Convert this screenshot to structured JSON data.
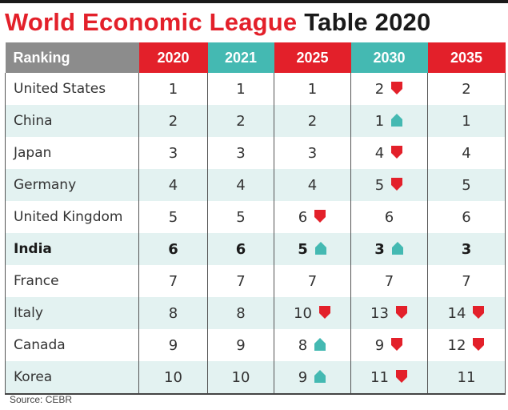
{
  "chart_data": {
    "type": "table",
    "title": "World Economic League Table 2020",
    "title_parts": {
      "red": "World Economic League",
      "black": "Table 2020"
    },
    "header": {
      "label": "Ranking",
      "years": [
        "2020",
        "2021",
        "2025",
        "2030",
        "2035"
      ],
      "colors": [
        "#e3202a",
        "#44b9b2",
        "#e3202a",
        "#44b9b2",
        "#e3202a"
      ]
    },
    "rows": [
      {
        "country": "United States",
        "ranks": [
          "1",
          "1",
          "1",
          "2",
          "2"
        ],
        "trend": [
          "",
          "",
          "",
          "down",
          ""
        ],
        "bold": false
      },
      {
        "country": "China",
        "ranks": [
          "2",
          "2",
          "2",
          "1",
          "1"
        ],
        "trend": [
          "",
          "",
          "",
          "up",
          ""
        ],
        "bold": false
      },
      {
        "country": "Japan",
        "ranks": [
          "3",
          "3",
          "3",
          "4",
          "4"
        ],
        "trend": [
          "",
          "",
          "",
          "down",
          ""
        ],
        "bold": false
      },
      {
        "country": "Germany",
        "ranks": [
          "4",
          "4",
          "4",
          "5",
          "5"
        ],
        "trend": [
          "",
          "",
          "",
          "down",
          ""
        ],
        "bold": false
      },
      {
        "country": "United Kingdom",
        "ranks": [
          "5",
          "5",
          "6",
          "6",
          "6"
        ],
        "trend": [
          "",
          "",
          "down",
          "",
          ""
        ],
        "bold": false
      },
      {
        "country": "India",
        "ranks": [
          "6",
          "6",
          "5",
          "3",
          "3"
        ],
        "trend": [
          "",
          "",
          "up",
          "up",
          ""
        ],
        "bold": true
      },
      {
        "country": "France",
        "ranks": [
          "7",
          "7",
          "7",
          "7",
          "7"
        ],
        "trend": [
          "",
          "",
          "",
          "",
          ""
        ],
        "bold": false
      },
      {
        "country": "Italy",
        "ranks": [
          "8",
          "8",
          "10",
          "13",
          "14"
        ],
        "trend": [
          "",
          "",
          "down",
          "down",
          "down"
        ],
        "bold": false
      },
      {
        "country": "Canada",
        "ranks": [
          "9",
          "9",
          "8",
          "9",
          "12"
        ],
        "trend": [
          "",
          "",
          "up",
          "down",
          "down"
        ],
        "bold": false
      },
      {
        "country": "Korea",
        "ranks": [
          "10",
          "10",
          "9",
          "11",
          "11"
        ],
        "trend": [
          "",
          "",
          "up",
          "down",
          ""
        ],
        "bold": false
      }
    ],
    "legend": {
      "up": "arrow-up (teal) = rank improves",
      "down": "arrow-down (red) = rank falls"
    },
    "colors": {
      "up": "#44b9b2",
      "down": "#e3202a"
    }
  },
  "source": "Source: CEBR"
}
